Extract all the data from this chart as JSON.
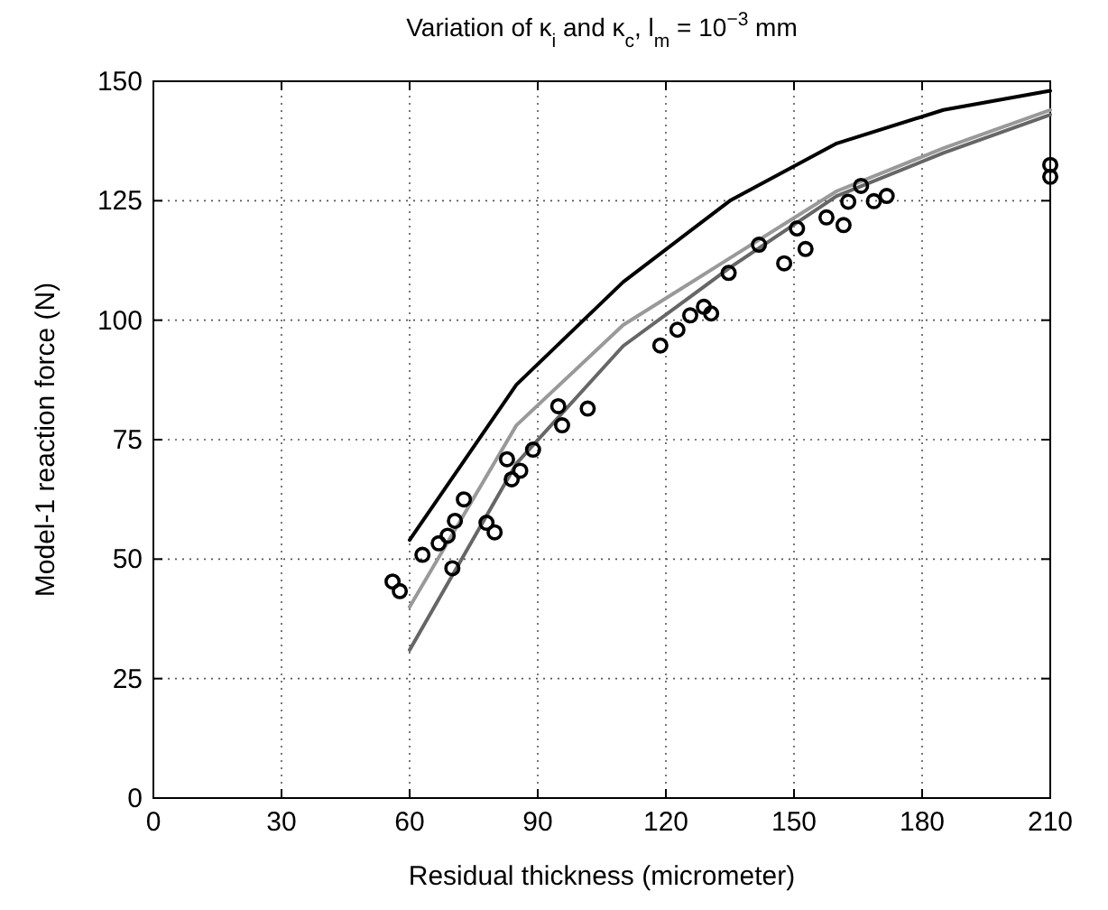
{
  "chart_data": {
    "type": "line",
    "title": "Variation of κ$_{i}$ and κ$_{c}$, l$_{m}$ = 10$^{−3}$ mm",
    "xlabel": "Residual thickness (micrometer)",
    "ylabel": "Model-1 reaction force (N)",
    "xlim": [
      0,
      210
    ],
    "ylim": [
      0,
      150
    ],
    "xticks": [
      0,
      30,
      60,
      90,
      120,
      150,
      180,
      210
    ],
    "yticks": [
      0,
      25,
      50,
      75,
      100,
      125,
      150
    ],
    "grid": true,
    "line_style": "solid",
    "marker": "none",
    "series": [
      {
        "color": "#000000",
        "x": [
          60,
          85,
          110,
          135,
          160,
          185,
          210
        ],
        "values": [
          54,
          86.5,
          108,
          125,
          137,
          144,
          148
        ]
      },
      {
        "color": "#999999",
        "x": [
          60,
          85,
          110,
          135,
          160,
          185,
          210
        ],
        "values": [
          40,
          78,
          99,
          113,
          127,
          136,
          144
        ]
      },
      {
        "color": "#666666",
        "x": [
          60,
          85,
          110,
          135,
          160,
          185,
          210
        ],
        "values": [
          31,
          70,
          94.6,
          111,
          126,
          135,
          143
        ]
      },
      {
        "type": "scatter",
        "color": "#000000",
        "marker": "circle",
        "x": [
          56,
          57.7,
          63,
          66.8,
          68.9,
          70,
          70.6,
          72.7,
          78,
          79.9,
          82.8,
          83.9,
          85.9,
          88.9,
          94.8,
          95.7,
          101.7,
          118.7,
          122.7,
          125.7,
          128.9,
          130.6,
          134.7,
          141.8,
          147.7,
          150.7,
          152.7,
          157.6,
          161.6,
          162.7,
          165.7,
          168.7,
          171.7,
          210,
          210
        ],
        "values": [
          45.3,
          43.3,
          50.9,
          53.3,
          54.9,
          48.1,
          58,
          62.5,
          57.6,
          55.6,
          70.9,
          66.7,
          68.5,
          72.9,
          82,
          78,
          81.5,
          94.7,
          98,
          101,
          102.8,
          101.4,
          109.9,
          115.8,
          111.9,
          119.2,
          114.9,
          121.5,
          119.9,
          124.8,
          128.1,
          124.9,
          126,
          132.5,
          130
        ]
      }
    ]
  }
}
